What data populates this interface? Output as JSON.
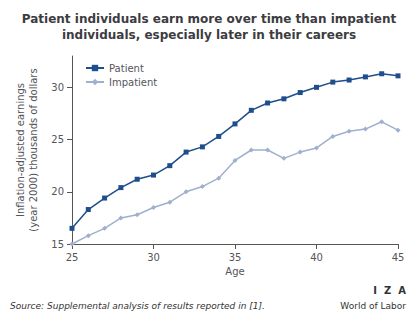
{
  "chart_data": {
    "type": "line",
    "title": "Patient individuals earn more over time than impatient\nindividuals, especially later in their careers",
    "xlabel": "Age",
    "ylabel": "Inflation-adjusted earnings\n(year 2000) thousands of dollars",
    "annotations": [
      "Source: Supplemental analysis of results reported in [1].",
      "I  Z  A",
      "World of Labor"
    ],
    "x": [
      25,
      26,
      27,
      28,
      29,
      30,
      31,
      32,
      33,
      34,
      35,
      36,
      37,
      38,
      39,
      40,
      41,
      42,
      43,
      44,
      45
    ],
    "series": [
      {
        "name": "Patient",
        "color": "#1f4e8c",
        "marker": "square",
        "values": [
          16.5,
          18.3,
          19.4,
          20.4,
          21.2,
          21.6,
          22.5,
          23.8,
          24.3,
          25.3,
          26.5,
          27.8,
          28.5,
          28.9,
          29.5,
          30.0,
          30.5,
          30.7,
          31.0,
          31.3,
          31.1
        ]
      },
      {
        "name": "Impatient",
        "color": "#a0b0cc",
        "marker": "diamond",
        "values": [
          15.0,
          15.8,
          16.5,
          17.5,
          17.8,
          18.5,
          19.0,
          20.0,
          20.5,
          21.3,
          23.0,
          24.0,
          24.0,
          23.2,
          23.8,
          24.2,
          25.3,
          25.8,
          26.0,
          26.7,
          25.9
        ]
      }
    ],
    "xlim": [
      25,
      45
    ],
    "xticks": [
      25,
      30,
      35,
      40,
      45
    ],
    "ylim": [
      15,
      33
    ],
    "yticks": [
      15,
      20,
      25,
      30
    ],
    "grid": false,
    "legend": "upper left"
  }
}
